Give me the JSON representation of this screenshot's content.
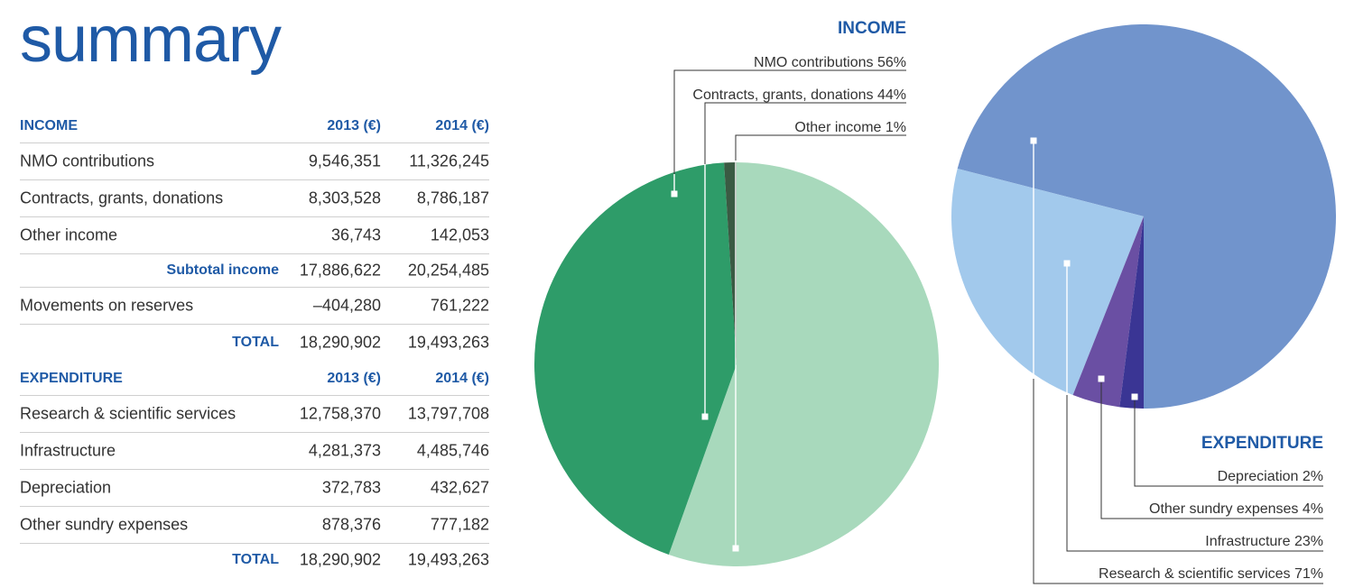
{
  "page": {
    "title": "summary"
  },
  "table": {
    "income": {
      "heading": "INCOME",
      "col_2013": "2013 (€)",
      "col_2014": "2014 (€)",
      "rows": [
        {
          "label": "NMO contributions",
          "v2013": "9,546,351",
          "v2014": "11,326,245"
        },
        {
          "label": "Contracts, grants, donations",
          "v2013": "8,303,528",
          "v2014": "8,786,187"
        },
        {
          "label": "Other income",
          "v2013": "36,743",
          "v2014": "142,053"
        }
      ],
      "subtotal": {
        "label": "Subtotal income",
        "v2013": "17,886,622",
        "v2014": "20,254,485"
      },
      "movements": {
        "label": "Movements on reserves",
        "v2013": "–404,280",
        "v2014": "761,222"
      },
      "total": {
        "label": "TOTAL",
        "v2013": "18,290,902",
        "v2014": "19,493,263"
      }
    },
    "expenditure": {
      "heading": "EXPENDITURE",
      "col_2013": "2013 (€)",
      "col_2014": "2014 (€)",
      "rows": [
        {
          "label": "Research & scientific services",
          "v2013": "12,758,370",
          "v2014": "13,797,708"
        },
        {
          "label": "Infrastructure",
          "v2013": "4,281,373",
          "v2014": "4,485,746"
        },
        {
          "label": "Depreciation",
          "v2013": "372,783",
          "v2014": "432,627"
        },
        {
          "label": "Other sundry expenses",
          "v2013": "878,376",
          "v2014": "777,182"
        }
      ],
      "total": {
        "label": "TOTAL",
        "v2013": "18,290,902",
        "v2014": "19,493,263"
      }
    }
  },
  "chart_data": [
    {
      "type": "pie",
      "title": "INCOME",
      "slices": [
        {
          "label": "NMO contributions",
          "value": 56,
          "display": "NMO contributions 56%",
          "color": "#a8d9bc"
        },
        {
          "label": "Contracts, grants, donations",
          "value": 44,
          "display": "Contracts, grants, donations 44%",
          "color": "#2e9c69"
        },
        {
          "label": "Other income",
          "value": 1,
          "display": "Other income   1%",
          "color": "#3a5a43"
        }
      ]
    },
    {
      "type": "pie",
      "title": "EXPENDITURE",
      "slices": [
        {
          "label": "Research & scientific services",
          "value": 71,
          "display": "Research & scientific services 71%",
          "color": "#7194cc"
        },
        {
          "label": "Infrastructure",
          "value": 23,
          "display": "Infrastructure 23%",
          "color": "#a2c9ec"
        },
        {
          "label": "Other sundry expenses",
          "value": 4,
          "display": "Other sundry expenses   4%",
          "color": "#6a4fa3"
        },
        {
          "label": "Depreciation",
          "value": 2,
          "display": "Depreciation   2%",
          "color": "#3a3594"
        }
      ]
    }
  ]
}
